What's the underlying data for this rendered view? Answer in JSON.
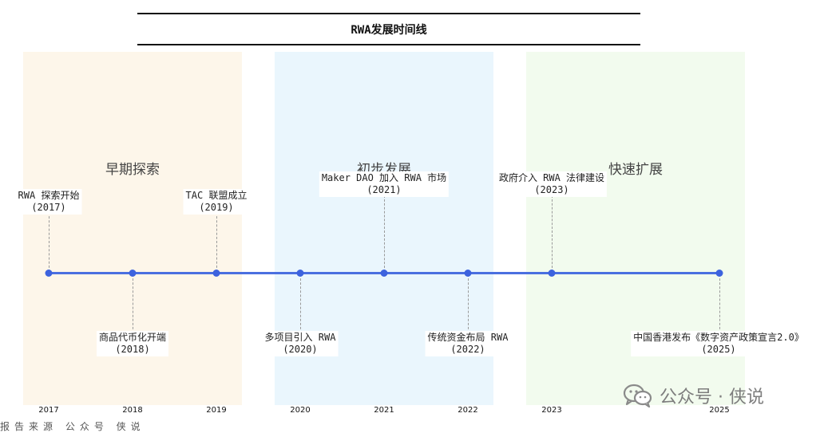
{
  "title": "RWA发展时间线",
  "phases": [
    "早期探索",
    "初步发展",
    "快速扩展"
  ],
  "events": [
    {
      "label": "RWA 探索开始",
      "year": "(2017)"
    },
    {
      "label": "商品代币化开端",
      "year": "(2018)"
    },
    {
      "label": "TAC 联盟成立",
      "year": "(2019)"
    },
    {
      "label": "多项目引入 RWA",
      "year": "(2020)"
    },
    {
      "label": "Maker DAO 加入 RWA 市场",
      "year": "(2021)"
    },
    {
      "label": "传统资金布局 RWA",
      "year": "(2022)"
    },
    {
      "label": "政府介入 RWA 法律建设",
      "year": "(2023)"
    },
    {
      "label": "中国香港发布《数字资产政策宣言2.0》",
      "year": "(2025)"
    }
  ],
  "x_ticks": [
    "2017",
    "2018",
    "2019",
    "2020",
    "2021",
    "2022",
    "2023",
    "2025"
  ],
  "watermark": {
    "text": "公众号 · 侠说",
    "icon": "wechat-icon"
  },
  "bottom_text": "报告来源  公众号 侠说",
  "colors": {
    "line": "#4a6fe0",
    "phase1": "#fdf6ea",
    "phase2": "#eaf6fd",
    "phase3": "#f2fbee"
  }
}
